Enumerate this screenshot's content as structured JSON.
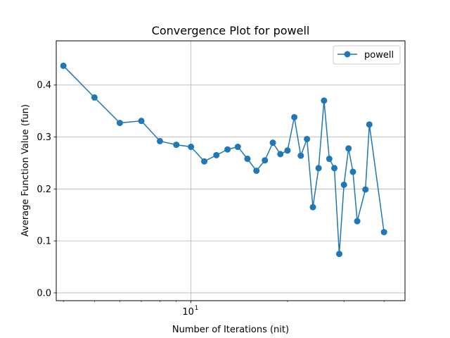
{
  "chart_data": {
    "type": "line",
    "title": "Convergence Plot for powell",
    "xlabel": "Number of Iterations (nit)",
    "ylabel": "Average Function Value (fun)",
    "xscale": "log",
    "xlim": [
      3.8,
      46.5
    ],
    "ylim": [
      -0.015,
      0.485
    ],
    "x_major_ticks": [
      {
        "value": 10,
        "label": "10",
        "sup": "1"
      }
    ],
    "x_minor_ticks": [
      4,
      5,
      6,
      7,
      8,
      9,
      20,
      30,
      40
    ],
    "y_ticks": [
      0.0,
      0.1,
      0.2,
      0.3,
      0.4
    ],
    "y_tick_labels": [
      "0.0",
      "0.1",
      "0.2",
      "0.3",
      "0.4"
    ],
    "grid": true,
    "legend": {
      "position": "top-right",
      "entries": [
        "powell"
      ]
    },
    "colors": {
      "series": "#1f77b4",
      "grid": "#b0b0b0"
    },
    "series": [
      {
        "name": "powell",
        "x": [
          4,
          5,
          6,
          7,
          8,
          9,
          10,
          11,
          12,
          13,
          14,
          15,
          16,
          17,
          18,
          19,
          20,
          21,
          22,
          23,
          24,
          25,
          26,
          27,
          28,
          29,
          30,
          31,
          32,
          33,
          35,
          36,
          40
        ],
        "y": [
          0.437,
          0.376,
          0.327,
          0.331,
          0.292,
          0.285,
          0.281,
          0.253,
          0.265,
          0.276,
          0.281,
          0.258,
          0.235,
          0.255,
          0.289,
          0.267,
          0.274,
          0.338,
          0.264,
          0.296,
          0.165,
          0.24,
          0.37,
          0.258,
          0.24,
          0.075,
          0.208,
          0.278,
          0.233,
          0.138,
          0.199,
          0.324,
          0.117
        ]
      }
    ]
  }
}
